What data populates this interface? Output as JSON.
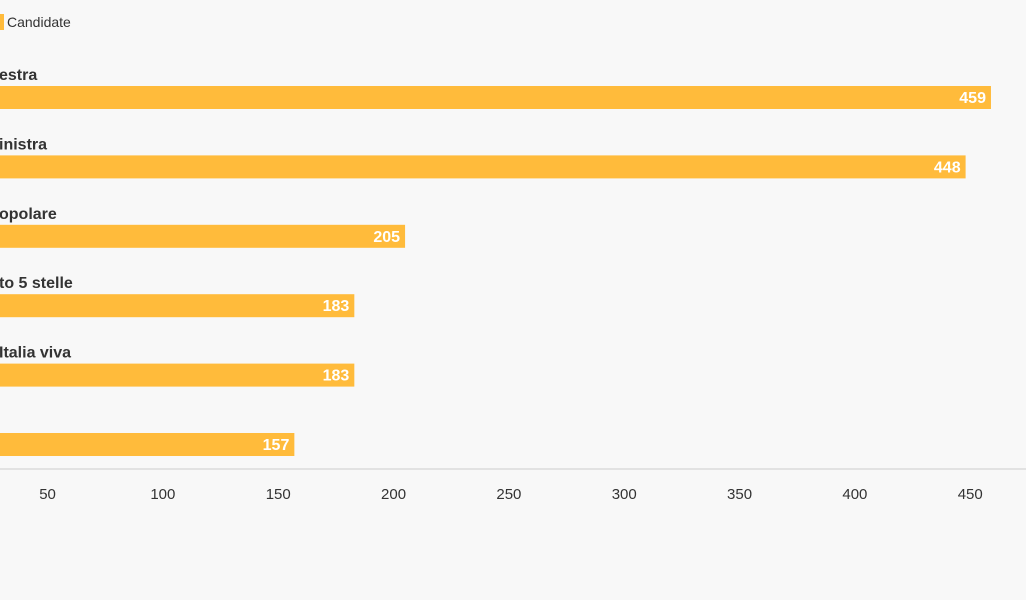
{
  "chart_data": {
    "type": "bar",
    "orientation": "horizontal",
    "title": "",
    "xlabel": "",
    "ylabel": "",
    "categories": [
      "estra",
      "inistra",
      "opolare",
      "to 5 stelle",
      "Italia viva",
      ""
    ],
    "series": [
      {
        "name": "Candidate",
        "color": "#ffbb3b",
        "values": [
          459,
          448,
          205,
          183,
          183,
          157
        ]
      }
    ],
    "xlim": [
      29,
      474
    ],
    "xticks": [
      50,
      100,
      150,
      200,
      250,
      300,
      350,
      400,
      450
    ],
    "xtick_labels": [
      "50",
      "100",
      "150",
      "200",
      "250",
      "300",
      "350",
      "400",
      "450"
    ],
    "grid": false,
    "legend": "top-left",
    "axis_color": "#cccccc"
  }
}
